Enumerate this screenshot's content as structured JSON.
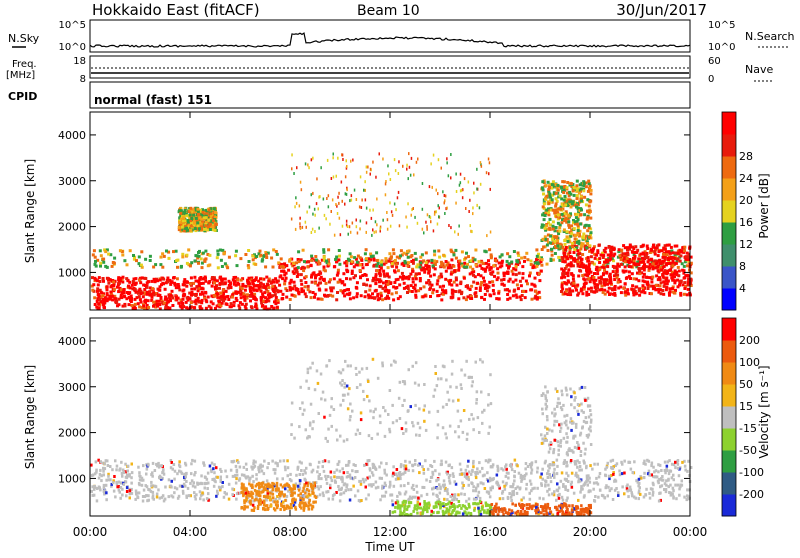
{
  "header": {
    "station": "Hokkaido East (fitACF)",
    "beam": "Beam 10",
    "date": "30/Jun/2017"
  },
  "strip": {
    "nsky_label": "N.Sky",
    "nsearch_label": "N.Search",
    "freq_label": "Freq.",
    "freq_unit": "[MHz]",
    "nave_label": "Nave",
    "cpid_label": "CPID",
    "cpid_text": "normal (fast) 151",
    "noise_ticks": [
      "10^5",
      "10^0"
    ],
    "freq_ticks": [
      "18",
      "8"
    ],
    "nave_ticks": [
      "60",
      "0"
    ]
  },
  "chart_data": [
    {
      "type": "heatmap",
      "title": "",
      "xlabel": "Time UT",
      "ylabel": "Slant Range [km]",
      "x_ticks": [
        "00:00",
        "04:00",
        "08:00",
        "12:00",
        "16:00",
        "20:00",
        "00:00"
      ],
      "y_ticks": [
        1000,
        2000,
        3000,
        4000
      ],
      "xlim": [
        0,
        24
      ],
      "ylim": [
        180,
        4500
      ],
      "colorbar": {
        "label": "Power [dB]",
        "ticks": [
          "4",
          "8",
          "12",
          "16",
          "20",
          "24",
          "28"
        ],
        "colors": [
          "#0000ff",
          "#3a55c8",
          "#3f8f6c",
          "#2e9e42",
          "#e5d21f",
          "#f4a018",
          "#ee6a10",
          "#e81b0c",
          "#ff0000"
        ]
      },
      "regions": [
        {
          "t": [
            0.0,
            7.5
          ],
          "r": [
            200,
            900
          ],
          "level": "high"
        },
        {
          "t": [
            7.5,
            18.0
          ],
          "r": [
            400,
            1300
          ],
          "level": "high"
        },
        {
          "t": [
            0.0,
            24.0
          ],
          "r": [
            1100,
            1500
          ],
          "level": "mid"
        },
        {
          "t": [
            18.8,
            24.0
          ],
          "r": [
            500,
            1600
          ],
          "level": "high"
        },
        {
          "t": [
            3.5,
            5.0
          ],
          "r": [
            1900,
            2400
          ],
          "level": "mid"
        },
        {
          "t": [
            8.0,
            16.0
          ],
          "r": [
            1800,
            3600
          ],
          "level": "sparse"
        },
        {
          "t": [
            18.0,
            20.0
          ],
          "r": [
            1500,
            3000
          ],
          "level": "mid"
        }
      ]
    },
    {
      "type": "heatmap",
      "title": "",
      "xlabel": "Time UT",
      "ylabel": "Slant Range [km]",
      "x_ticks": [
        "00:00",
        "04:00",
        "08:00",
        "12:00",
        "16:00",
        "20:00",
        "00:00"
      ],
      "y_ticks": [
        1000,
        2000,
        3000,
        4000
      ],
      "xlim": [
        0,
        24
      ],
      "ylim": [
        180,
        4500
      ],
      "colorbar": {
        "label": "Velocity [m s⁻¹]",
        "ticks": [
          "200",
          "100",
          "50",
          "15",
          "-15",
          "-50",
          "-100",
          "-200"
        ],
        "colors": [
          "#1a2ad8",
          "#2f5b84",
          "#2e9e42",
          "#8dd12f",
          "#bfbfbf",
          "#f2b418",
          "#f08a14",
          "#ec5a0e",
          "#ff0000"
        ]
      }
    }
  ]
}
